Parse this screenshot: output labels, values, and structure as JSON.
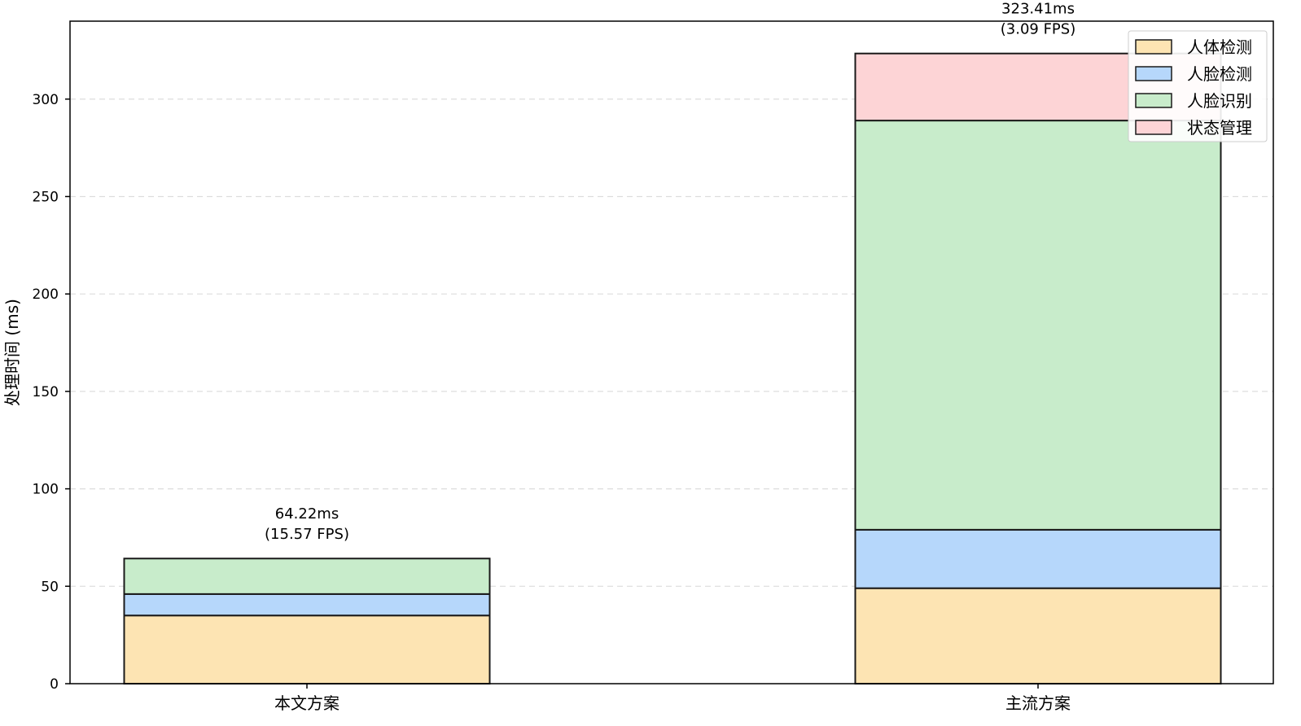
{
  "chart_data": {
    "type": "bar",
    "stacked": true,
    "title": "",
    "xlabel": "",
    "ylabel": "处理时间 (ms)",
    "ylim": [
      0,
      340
    ],
    "yticks": [
      0,
      50,
      100,
      150,
      200,
      250,
      300
    ],
    "grid": "y-dashed",
    "categories": [
      "本文方案",
      "主流方案"
    ],
    "series": [
      {
        "name": "人体检测",
        "color": "#fde4b3",
        "values": [
          35.0,
          49.0
        ]
      },
      {
        "name": "人脸检测",
        "color": "#b6d7fb",
        "values": [
          11.0,
          30.0
        ]
      },
      {
        "name": "人脸识别",
        "color": "#c8eccb",
        "values": [
          18.22,
          210.0
        ]
      },
      {
        "name": "状态管理",
        "color": "#fdd4d6",
        "values": [
          0.0,
          34.41
        ]
      }
    ],
    "totals": [
      64.22,
      323.41
    ],
    "annotations": [
      {
        "line1": "64.22ms",
        "line2": "(15.57 FPS)"
      },
      {
        "line1": "323.41ms",
        "line2": "(3.09 FPS)"
      }
    ],
    "legend_position": "top-right"
  }
}
